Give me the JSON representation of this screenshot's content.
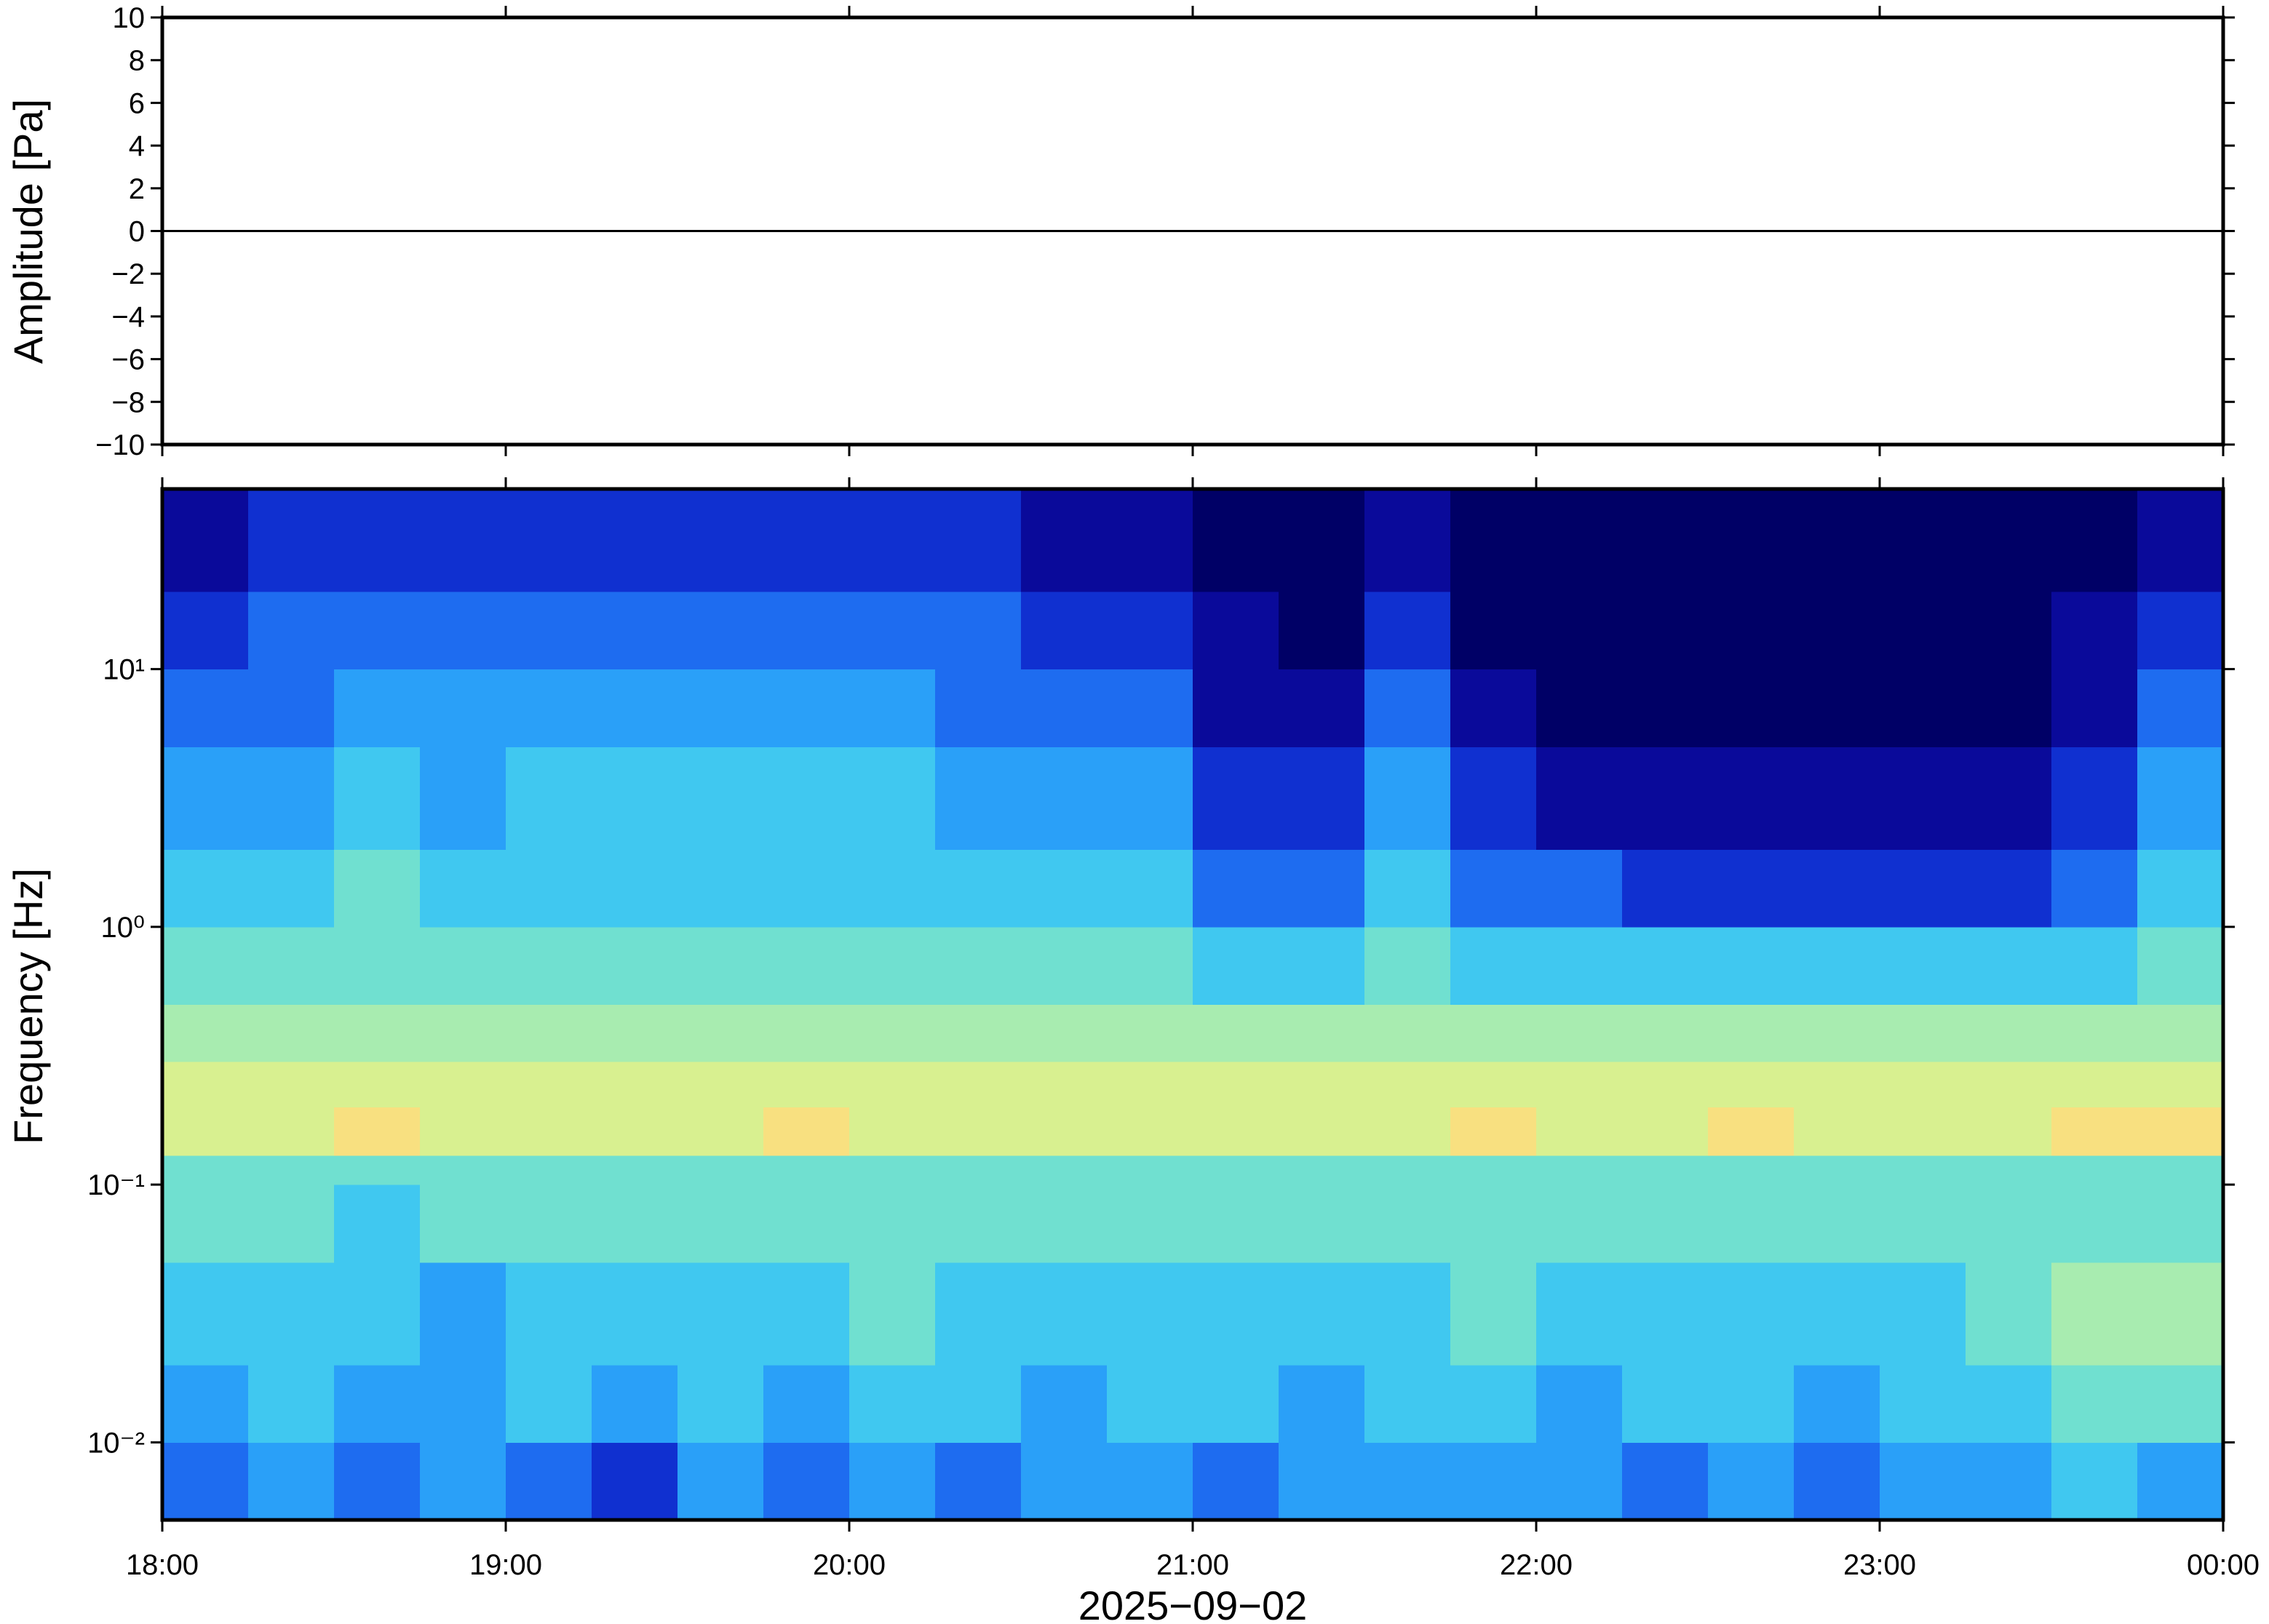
{
  "chart_data": [
    {
      "type": "line",
      "ylabel": "Amplitude [Pa]",
      "xlim": [
        18,
        24
      ],
      "ylim": [
        -10,
        10
      ],
      "yticks": [
        {
          "value": -10,
          "label": "−10"
        },
        {
          "value": -8,
          "label": "−8"
        },
        {
          "value": -6,
          "label": "−6"
        },
        {
          "value": -4,
          "label": "−4"
        },
        {
          "value": -2,
          "label": "−2"
        },
        0,
        2,
        4,
        6,
        8,
        10
      ],
      "x": [
        18,
        24
      ],
      "values": [
        0,
        0
      ],
      "color": "#000000"
    },
    {
      "type": "heatmap",
      "ylabel": "Frequency [Hz]",
      "xlabel": "2025−09−02",
      "xlim": [
        18,
        24
      ],
      "ylim": [
        0.005,
        50
      ],
      "log_y": true,
      "xticks": [
        {
          "value": 18,
          "label": "18:00"
        },
        {
          "value": 19,
          "label": "19:00"
        },
        {
          "value": 20,
          "label": "20:00"
        },
        {
          "value": 21,
          "label": "21:00"
        },
        {
          "value": 22,
          "label": "22:00"
        },
        {
          "value": 23,
          "label": "23:00"
        },
        {
          "value": 24,
          "label": "00:00"
        }
      ],
      "yticks": [
        {
          "value": 10,
          "label": "10¹"
        },
        {
          "value": 1,
          "label": "10⁰"
        },
        {
          "value": 0.1,
          "label": "10⁻¹"
        },
        {
          "value": 0.01,
          "label": "10⁻²"
        }
      ],
      "x_edges": [
        18,
        18.25,
        18.5,
        18.75,
        19,
        19.25,
        19.5,
        19.75,
        20,
        20.25,
        20.5,
        20.75,
        21,
        21.25,
        21.5,
        21.75,
        22,
        22.25,
        22.5,
        22.75,
        23,
        23.25,
        23.5,
        23.75,
        24
      ],
      "y_edges": [
        0.005,
        0.01,
        0.02,
        0.05,
        0.1,
        0.13,
        0.2,
        0.3,
        0.5,
        1,
        2,
        5,
        10,
        20,
        50
      ],
      "colormap": [
        "#000066",
        "#0a0a9a",
        "#1030d0",
        "#1e6cf0",
        "#2aa0f8",
        "#40c8f0",
        "#70e0d0",
        "#a8ecb0",
        "#d8f090",
        "#f8e080",
        "#f8a060"
      ],
      "values": [
        [
          3,
          4,
          3,
          4,
          3,
          2,
          4,
          3,
          4,
          3,
          4,
          4,
          3,
          4,
          4,
          4,
          4,
          3,
          4,
          3,
          4,
          4,
          5,
          4
        ],
        [
          4,
          5,
          4,
          4,
          5,
          4,
          5,
          4,
          5,
          5,
          4,
          5,
          5,
          4,
          5,
          5,
          4,
          5,
          5,
          4,
          5,
          5,
          6,
          6
        ],
        [
          5,
          5,
          5,
          4,
          5,
          5,
          5,
          5,
          6,
          5,
          5,
          5,
          5,
          5,
          5,
          6,
          5,
          5,
          5,
          5,
          5,
          6,
          7,
          7
        ],
        [
          6,
          6,
          5,
          6,
          6,
          6,
          6,
          6,
          6,
          6,
          6,
          6,
          6,
          6,
          6,
          6,
          6,
          6,
          6,
          6,
          6,
          6,
          6,
          6
        ],
        [
          6,
          6,
          6,
          6,
          6,
          6,
          6,
          6,
          6,
          6,
          6,
          6,
          6,
          6,
          6,
          6,
          6,
          6,
          6,
          6,
          6,
          6,
          6,
          6
        ],
        [
          8,
          8,
          9,
          8,
          8,
          8,
          8,
          9,
          8,
          8,
          8,
          8,
          8,
          8,
          8,
          9,
          8,
          8,
          9,
          8,
          8,
          8,
          9,
          9
        ],
        [
          8,
          8,
          8,
          8,
          8,
          8,
          8,
          8,
          8,
          8,
          8,
          8,
          8,
          8,
          8,
          8,
          8,
          8,
          8,
          8,
          8,
          8,
          8,
          8
        ],
        [
          7,
          7,
          7,
          7,
          7,
          7,
          7,
          7,
          7,
          7,
          7,
          7,
          7,
          7,
          7,
          7,
          7,
          7,
          7,
          7,
          7,
          7,
          7,
          7
        ],
        [
          6,
          6,
          6,
          6,
          6,
          6,
          6,
          6,
          6,
          6,
          6,
          6,
          5,
          5,
          6,
          5,
          5,
          5,
          5,
          5,
          5,
          5,
          5,
          6
        ],
        [
          5,
          5,
          6,
          5,
          5,
          5,
          5,
          5,
          5,
          5,
          5,
          5,
          3,
          3,
          5,
          3,
          3,
          2,
          2,
          2,
          2,
          2,
          3,
          5
        ],
        [
          4,
          4,
          5,
          4,
          5,
          5,
          5,
          5,
          5,
          4,
          4,
          4,
          2,
          2,
          4,
          2,
          1,
          1,
          1,
          1,
          1,
          1,
          2,
          4
        ],
        [
          3,
          3,
          4,
          4,
          4,
          4,
          4,
          4,
          4,
          3,
          3,
          3,
          1,
          1,
          3,
          1,
          0,
          0,
          0,
          0,
          0,
          0,
          1,
          3
        ],
        [
          2,
          3,
          3,
          3,
          3,
          3,
          3,
          3,
          3,
          3,
          2,
          2,
          1,
          0,
          2,
          0,
          0,
          0,
          0,
          0,
          0,
          0,
          1,
          2
        ],
        [
          1,
          2,
          2,
          2,
          2,
          2,
          2,
          2,
          2,
          2,
          1,
          1,
          0,
          0,
          1,
          0,
          0,
          0,
          0,
          0,
          0,
          0,
          0,
          1
        ]
      ]
    }
  ]
}
